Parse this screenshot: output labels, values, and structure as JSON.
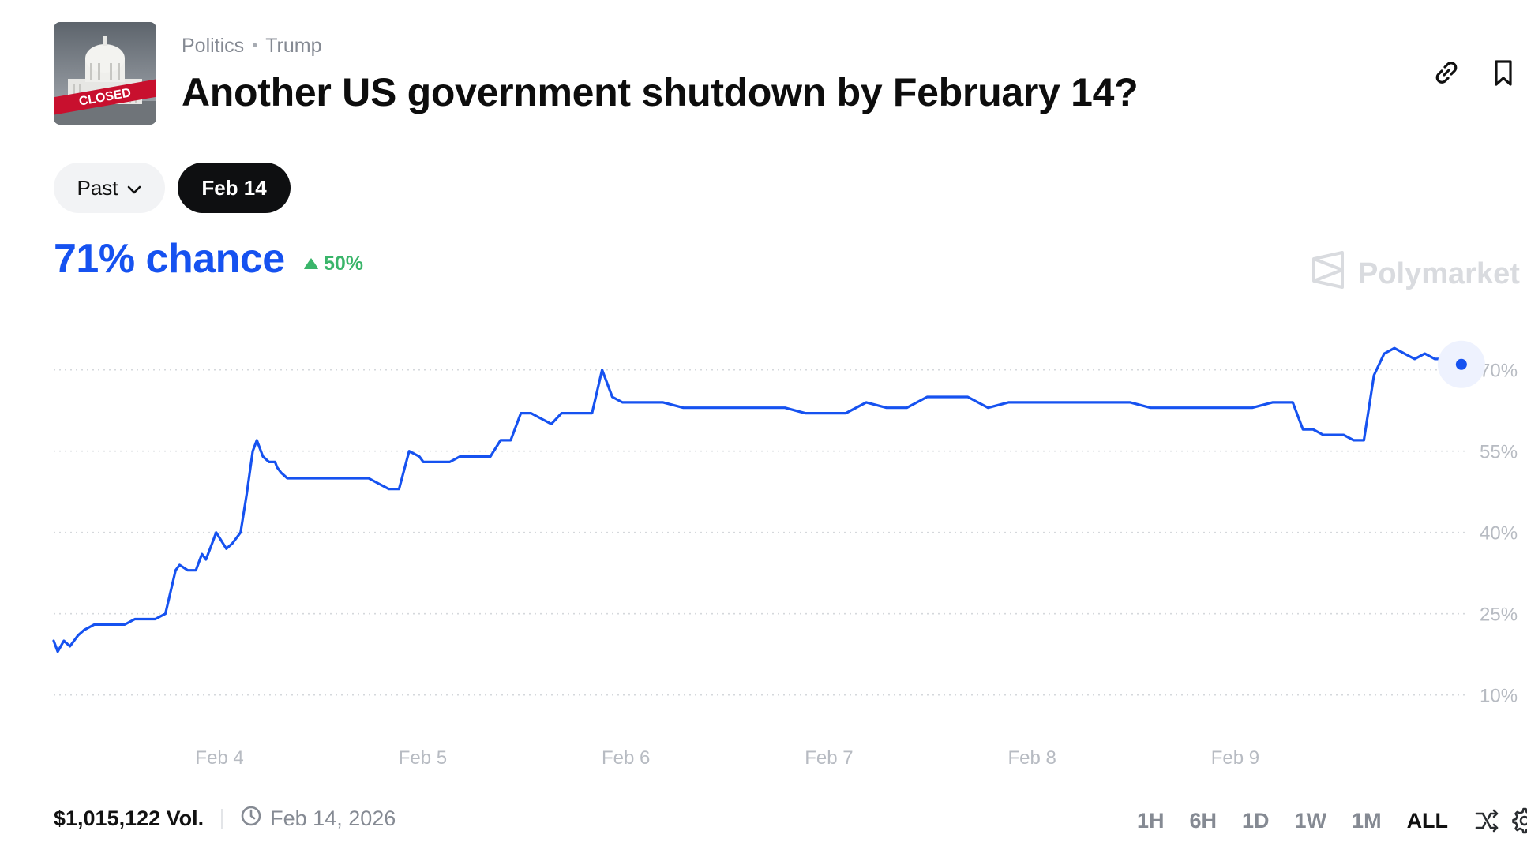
{
  "header": {
    "category": "Politics",
    "subcategory": "Trump",
    "title": "Another US government shutdown by February 14?",
    "thumbnail_text": "CLOSED",
    "icons": [
      "link-icon",
      "bookmark-icon"
    ]
  },
  "outcomes": {
    "past_label": "Past",
    "active_label": "Feb 14"
  },
  "stats": {
    "chance": "71% chance",
    "delta": "50%",
    "brand": "Polymarket"
  },
  "colors": {
    "line": "#1652f0",
    "up": "#3ab56a",
    "grid": "#d5d8dc",
    "tick": "#b7bbc2"
  },
  "chart_data": {
    "type": "line",
    "title": "",
    "xlabel": "",
    "ylabel": "",
    "ylim": [
      5,
      80
    ],
    "yticks": [
      10,
      25,
      40,
      55,
      70
    ],
    "ytick_labels": [
      "10%",
      "25%",
      "40%",
      "55%",
      "70%"
    ],
    "xlim": [
      0,
      6.95
    ],
    "xtick_positions": [
      0.8167,
      1.8167,
      2.8167,
      3.8167,
      4.8167,
      5.8167
    ],
    "xtick_labels": [
      "Feb 4",
      "Feb 5",
      "Feb 6",
      "Feb 7",
      "Feb 8",
      "Feb 9"
    ],
    "grid": true,
    "series": [
      {
        "x": [
          0,
          0.02,
          0.05,
          0.08,
          0.12,
          0.15,
          0.2,
          0.25,
          0.3,
          0.35,
          0.4,
          0.45,
          0.5,
          0.55,
          0.6,
          0.62,
          0.66,
          0.7,
          0.73,
          0.75,
          0.78,
          0.8,
          0.85,
          0.88,
          0.92,
          0.95,
          0.98,
          1.0,
          1.03,
          1.06,
          1.09,
          1.1,
          1.12,
          1.15,
          1.2,
          1.25,
          1.3,
          1.35,
          1.4,
          1.45,
          1.5,
          1.55,
          1.6,
          1.65,
          1.7,
          1.75,
          1.8,
          1.82,
          1.85,
          1.9,
          1.95,
          2.0,
          2.05,
          2.1,
          2.15,
          2.2,
          2.25,
          2.3,
          2.35,
          2.4,
          2.45,
          2.5,
          2.55,
          2.6,
          2.65,
          2.7,
          2.75,
          2.8,
          2.85,
          2.9,
          2.95,
          3.0,
          3.1,
          3.2,
          3.3,
          3.4,
          3.5,
          3.6,
          3.7,
          3.8,
          3.9,
          4.0,
          4.1,
          4.2,
          4.3,
          4.4,
          4.5,
          4.6,
          4.7,
          4.8,
          4.9,
          5.0,
          5.1,
          5.2,
          5.3,
          5.4,
          5.5,
          5.6,
          5.7,
          5.8,
          5.9,
          6.0,
          6.05,
          6.1,
          6.15,
          6.2,
          6.25,
          6.3,
          6.35,
          6.4,
          6.45,
          6.5,
          6.55,
          6.6,
          6.65,
          6.7,
          6.75,
          6.8,
          6.85,
          6.9,
          6.93
        ],
        "y": [
          20,
          18,
          20,
          19,
          21,
          22,
          23,
          23,
          23,
          23,
          24,
          24,
          24,
          25,
          33,
          34,
          33,
          33,
          36,
          35,
          38,
          40,
          37,
          38,
          40,
          47,
          55,
          57,
          54,
          53,
          53,
          52,
          51,
          50,
          50,
          50,
          50,
          50,
          50,
          50,
          50,
          50,
          49,
          48,
          48,
          55,
          54,
          53,
          53,
          53,
          53,
          54,
          54,
          54,
          54,
          57,
          57,
          62,
          62,
          61,
          60,
          62,
          62,
          62,
          62,
          70,
          65,
          64,
          64,
          64,
          64,
          64,
          63,
          63,
          63,
          63,
          63,
          63,
          62,
          62,
          62,
          64,
          63,
          63,
          65,
          65,
          65,
          63,
          64,
          64,
          64,
          64,
          64,
          64,
          64,
          63,
          63,
          63,
          63,
          63,
          63,
          64,
          64,
          64,
          59,
          59,
          58,
          58,
          58,
          57,
          57,
          69,
          73,
          74,
          73,
          72,
          73,
          72,
          72,
          71,
          71
        ]
      }
    ]
  },
  "footer": {
    "volume": "$1,015,122 Vol.",
    "end_date": "Feb 14, 2026",
    "ranges": [
      "1H",
      "6H",
      "1D",
      "1W",
      "1M",
      "ALL"
    ],
    "selected_range": "ALL"
  }
}
